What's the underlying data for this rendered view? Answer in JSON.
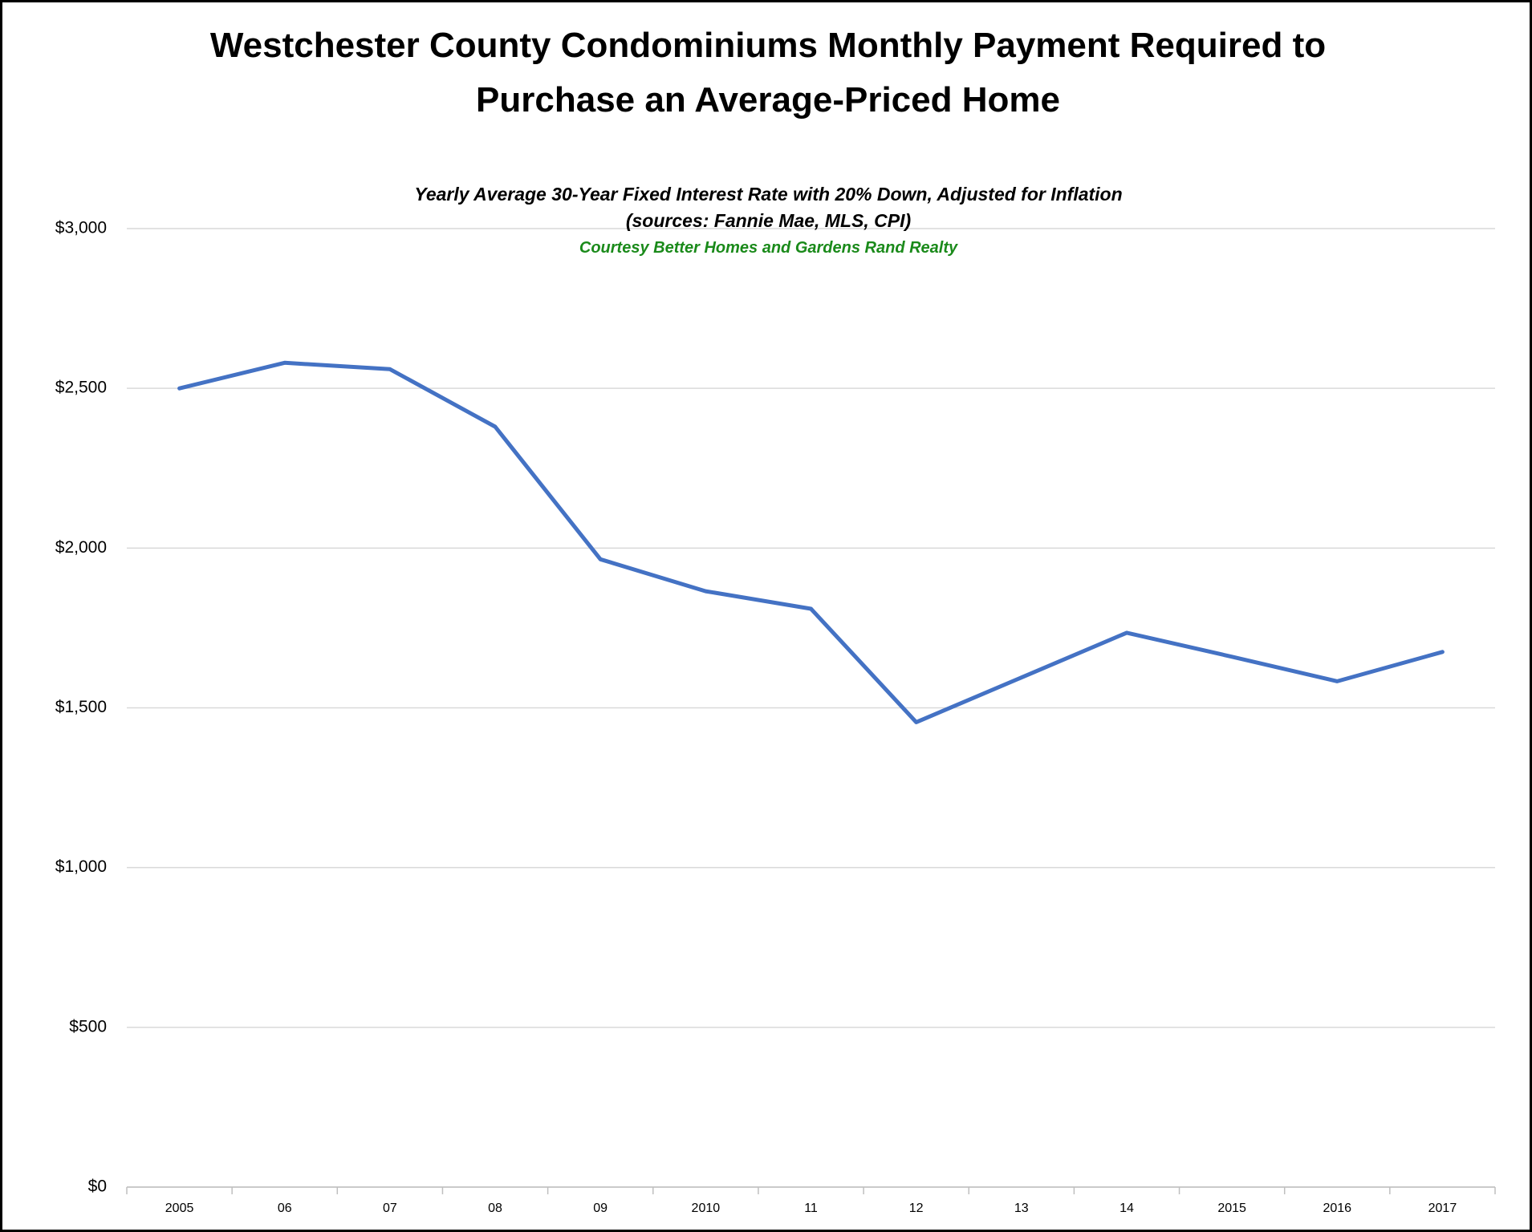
{
  "chart_data": {
    "type": "line",
    "title": "Westchester County Condominiums Monthly Payment Required to Purchase an Average-Priced Home",
    "subtitle": "Yearly Average 30-Year Fixed Interest Rate with 20% Down, Adjusted for Inflation",
    "source": "(sources: Fannie Mae, MLS, CPI)",
    "annotation": "Courtesy Better Homes and Gardens Rand Realty",
    "categories": [
      "2005",
      "06",
      "07",
      "08",
      "09",
      "2010",
      "11",
      "12",
      "13",
      "14",
      "2015",
      "2016",
      "2017"
    ],
    "values": [
      2500,
      2580,
      2560,
      2380,
      1965,
      1865,
      1810,
      1455,
      1595,
      1735,
      1660,
      1583,
      1675
    ],
    "color": "#4472c4",
    "ylim": [
      0,
      3000
    ],
    "yticks": [
      {
        "value": 0,
        "label": "$0"
      },
      {
        "value": 500,
        "label": "$500"
      },
      {
        "value": 1000,
        "label": "$1,000"
      },
      {
        "value": 1500,
        "label": "$1,500"
      },
      {
        "value": 2000,
        "label": "$2,000"
      },
      {
        "value": 2500,
        "label": "$2,500"
      },
      {
        "value": 3000,
        "label": "$3,000"
      }
    ],
    "grid": true
  }
}
